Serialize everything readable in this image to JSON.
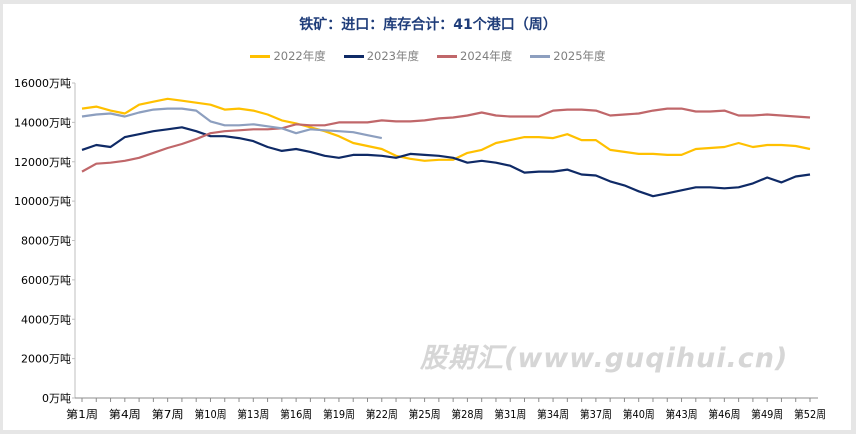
{
  "chart_data": {
    "type": "line",
    "title": "铁矿：进口：库存合计：41个港口（周）",
    "xlabel": "",
    "ylabel": "",
    "ylim": [
      0,
      16000
    ],
    "yticks": [
      0,
      2000,
      4000,
      6000,
      8000,
      10000,
      12000,
      14000,
      16000
    ],
    "ytick_labels": [
      "0万吨",
      "2000万吨",
      "4000万吨",
      "6000万吨",
      "8000万吨",
      "10000万吨",
      "12000万吨",
      "14000万吨",
      "16000万吨"
    ],
    "xtick_labels": [
      "第1周",
      "第4周",
      "第7周",
      "第10周",
      "第13周",
      "第16周",
      "第19周",
      "第22周",
      "第25周",
      "第28周",
      "第31周",
      "第34周",
      "第37周",
      "第40周",
      "第43周",
      "第46周",
      "第49周",
      "第52周"
    ],
    "grid": false,
    "legend": "top",
    "series": [
      {
        "name": "2022年度",
        "color": "#ffc000",
        "values": [
          14700,
          14800,
          14600,
          14450,
          14900,
          15050,
          15200,
          15100,
          15000,
          14900,
          14650,
          14700,
          14600,
          14400,
          14100,
          13950,
          13750,
          13550,
          13300,
          12950,
          12800,
          12650,
          12300,
          12150,
          12050,
          12100,
          12100,
          12450,
          12600,
          12950,
          13100,
          13250,
          13250,
          13200,
          13400,
          13100,
          13100,
          12600,
          12500,
          12400,
          12400,
          12350,
          12350,
          12650,
          12700,
          12750,
          12950,
          12750,
          12850,
          12850,
          12800,
          12650
        ]
      },
      {
        "name": "2023年度",
        "color": "#0f2a66",
        "values": [
          12600,
          12850,
          12750,
          13250,
          13400,
          13550,
          13650,
          13750,
          13550,
          13300,
          13300,
          13200,
          13050,
          12750,
          12550,
          12650,
          12500,
          12300,
          12200,
          12350,
          12350,
          12300,
          12200,
          12400,
          12350,
          12300,
          12200,
          11950,
          12050,
          11950,
          11800,
          11450,
          11500,
          11500,
          11600,
          11350,
          11300,
          11000,
          10800,
          10500,
          10250,
          10400,
          10550,
          10700,
          10700,
          10650,
          10700,
          10900,
          11200,
          10950,
          11250,
          11350
        ]
      },
      {
        "name": "2024年度",
        "color": "#c0676a",
        "values": [
          11500,
          11900,
          11950,
          12050,
          12200,
          12450,
          12700,
          12900,
          13150,
          13450,
          13550,
          13600,
          13650,
          13650,
          13700,
          13900,
          13850,
          13850,
          14000,
          14000,
          14000,
          14100,
          14050,
          14050,
          14100,
          14200,
          14250,
          14350,
          14500,
          14350,
          14300,
          14300,
          14300,
          14600,
          14650,
          14650,
          14600,
          14350,
          14400,
          14450,
          14600,
          14700,
          14700,
          14550,
          14550,
          14600,
          14350,
          14350,
          14400,
          14350,
          14300,
          14250
        ]
      },
      {
        "name": "2025年度",
        "color": "#8d9fbf",
        "values": [
          14300,
          14400,
          14450,
          14300,
          14500,
          14650,
          14700,
          14700,
          14600,
          14050,
          13850,
          13850,
          13900,
          13800,
          13700,
          13450,
          13650,
          13600,
          13550,
          13500,
          13350,
          13200
        ]
      }
    ]
  },
  "watermark": "股期汇(www.guqihui.cn)"
}
